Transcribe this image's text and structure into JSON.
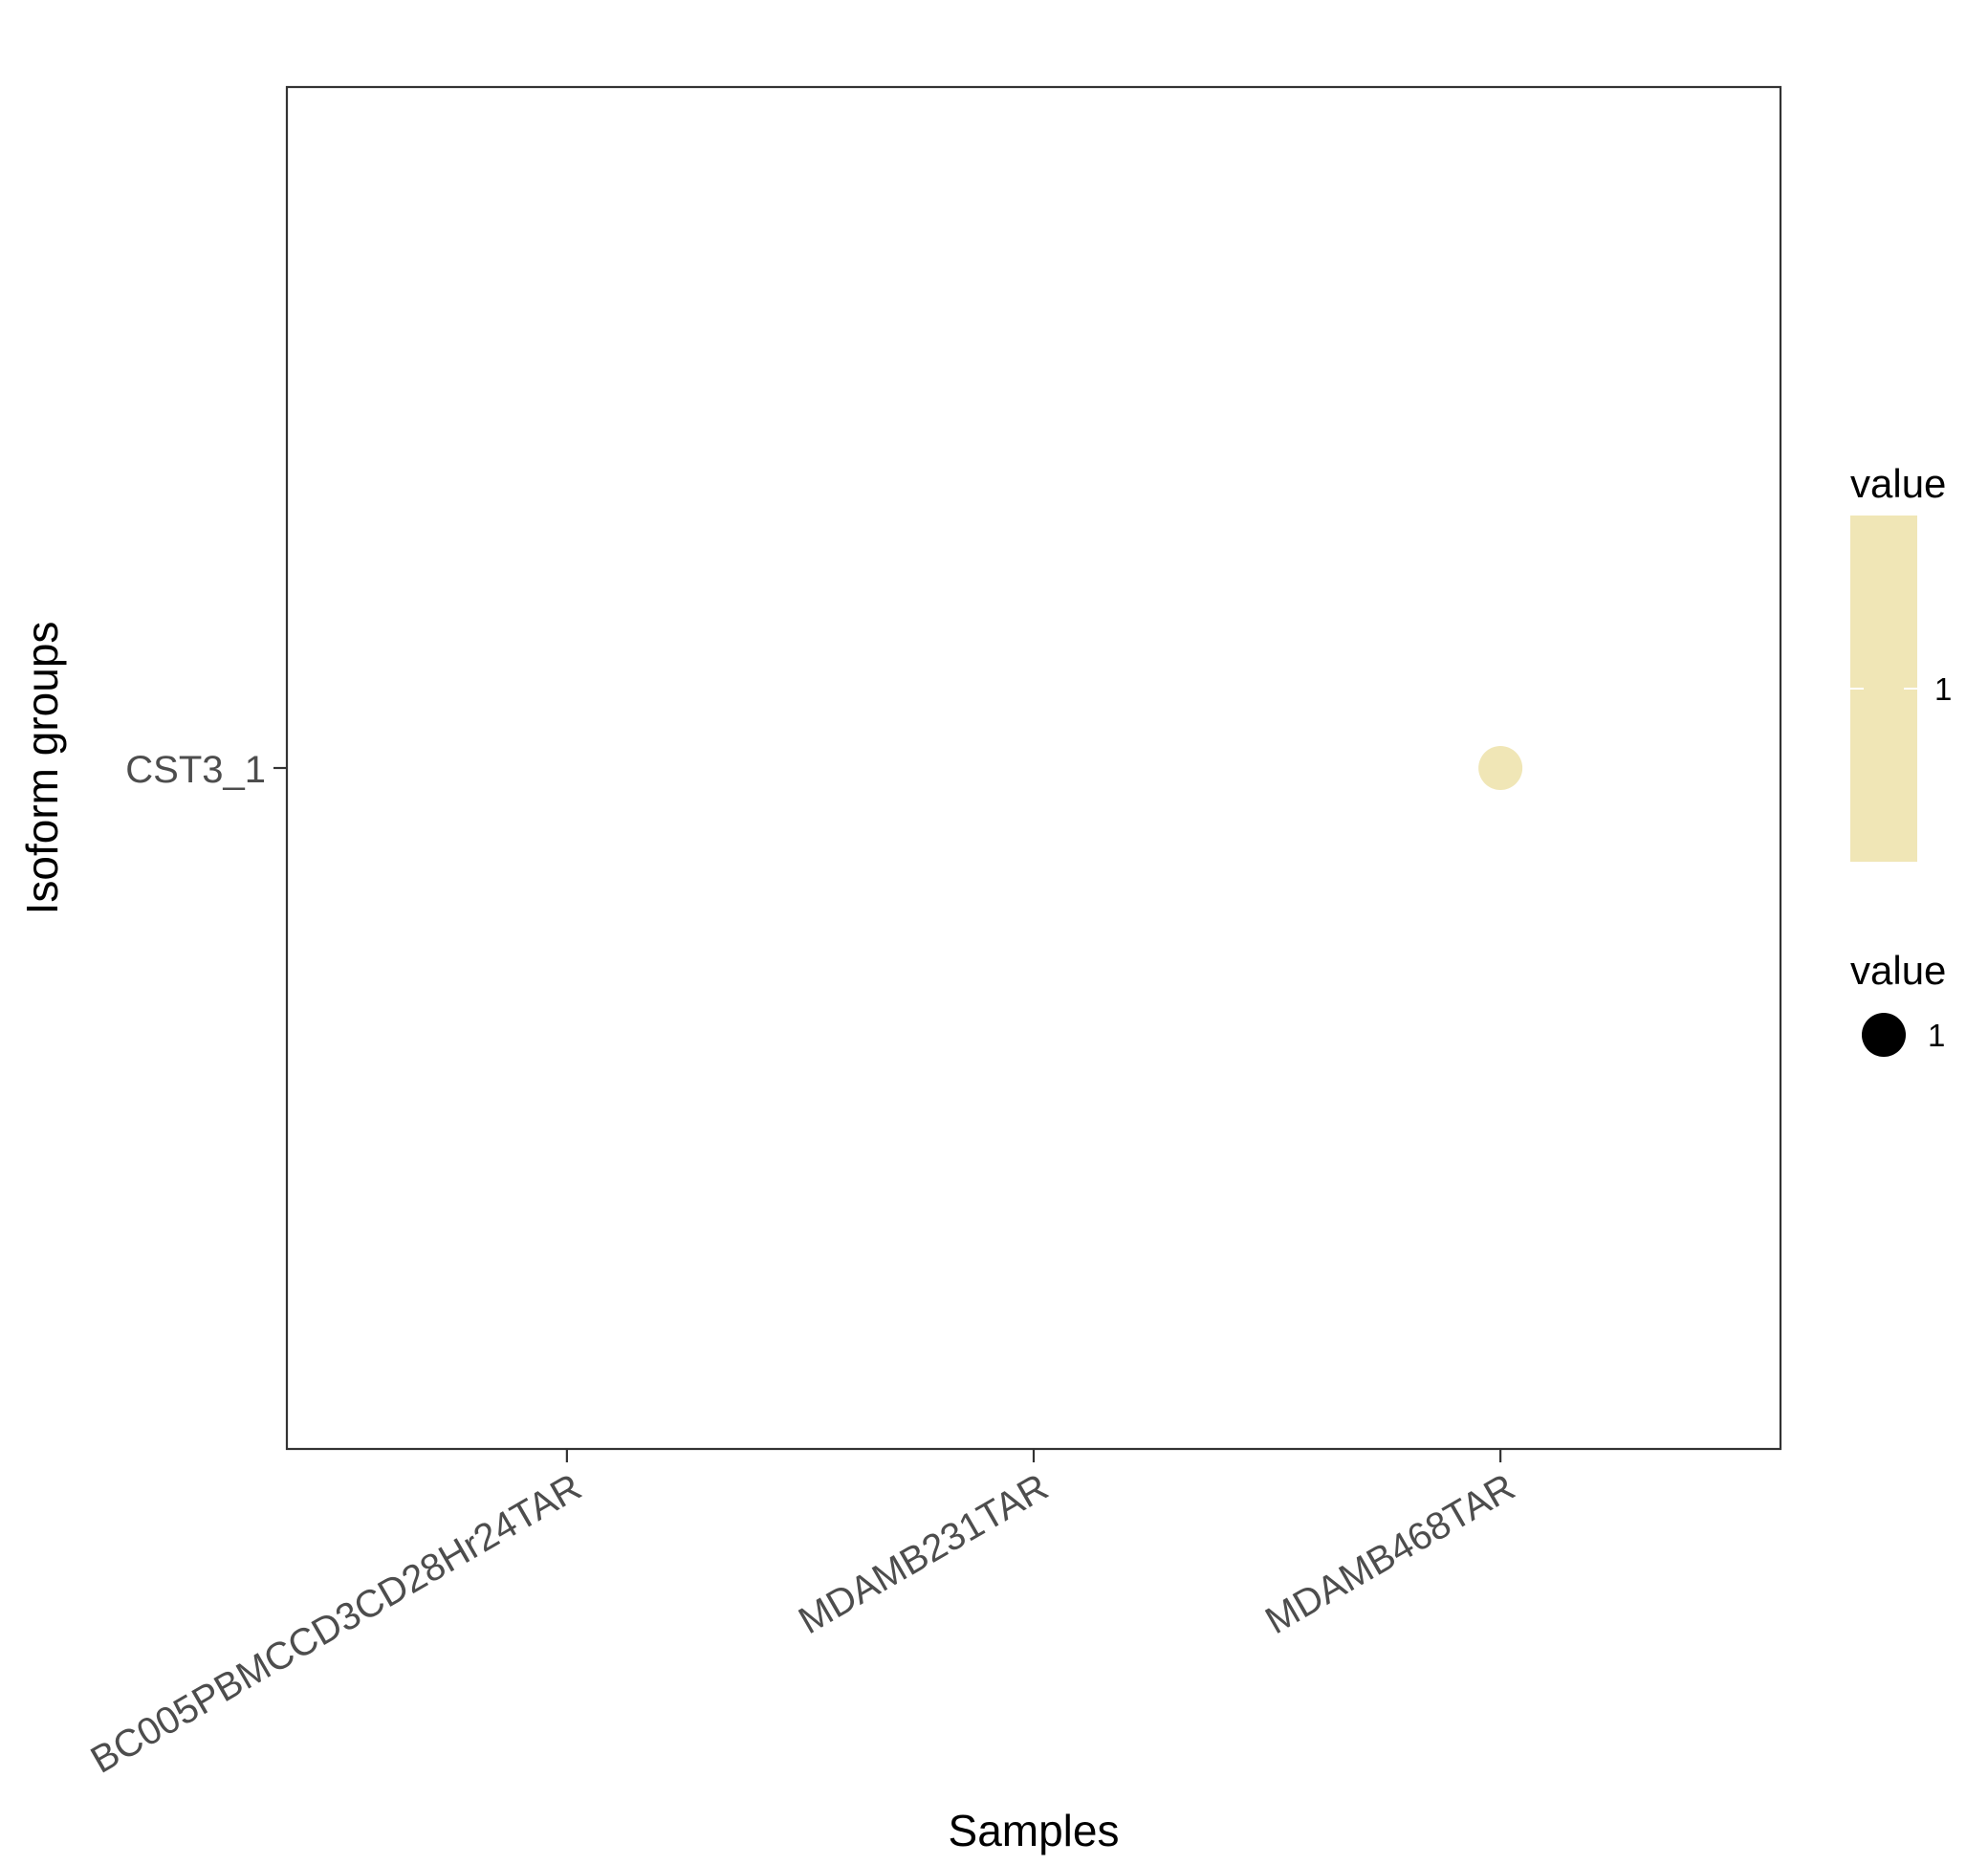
{
  "chart_data": {
    "type": "scatter",
    "title": "",
    "xlabel": "Samples",
    "ylabel": "Isoform groups",
    "x_categories": [
      "BC005PBMCCD3CD28Hr24TAR",
      "MDAMB231TAR",
      "MDAMB468TAR"
    ],
    "y_categories": [
      "CST3_1"
    ],
    "points": [
      {
        "x": "MDAMB468TAR",
        "y": "CST3_1",
        "value": 1
      }
    ],
    "grid": false,
    "legend_position": "right",
    "legends": {
      "color": {
        "title": "value",
        "ticks": [
          1
        ],
        "color": "#F0E6B6"
      },
      "size": {
        "title": "value",
        "entries": [
          1
        ],
        "color": "#000000"
      }
    },
    "colors": {
      "point": "#F0E6B6",
      "panel_border": "#333333",
      "tick_label": "#4d4d4d"
    }
  }
}
